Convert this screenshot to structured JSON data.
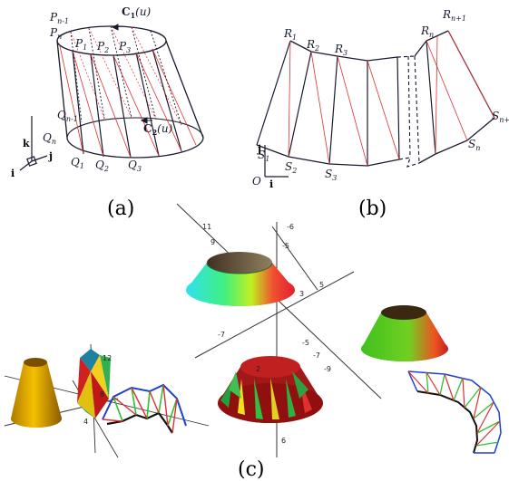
{
  "captions": {
    "a": "(a)",
    "b": "(b)",
    "c": "(c)"
  },
  "panel_a": {
    "curve_top": "C",
    "curve_top_sub": "1",
    "curve_top_arg": "(u)",
    "curve_bottom": "C",
    "curve_bottom_sub": "2",
    "curve_bottom_arg": "(u)",
    "top_points": [
      {
        "name": "P",
        "sub": "n-1"
      },
      {
        "name": "P",
        "sub": "n"
      },
      {
        "name": "P",
        "sub": "1"
      },
      {
        "name": "P",
        "sub": "2"
      },
      {
        "name": "P",
        "sub": "3"
      }
    ],
    "bottom_points": [
      {
        "name": "Q",
        "sub": "n-1"
      },
      {
        "name": "Q",
        "sub": "n"
      },
      {
        "name": "Q",
        "sub": "1"
      },
      {
        "name": "Q",
        "sub": "2"
      },
      {
        "name": "Q",
        "sub": "3"
      }
    ],
    "axes": {
      "k": "k",
      "j": "j",
      "i": "i"
    }
  },
  "panel_b": {
    "top_points": [
      {
        "name": "R",
        "sub": "1"
      },
      {
        "name": "R",
        "sub": "2"
      },
      {
        "name": "R",
        "sub": "3"
      },
      {
        "name": "R",
        "sub": "n"
      },
      {
        "name": "R",
        "sub": "n+1"
      }
    ],
    "bottom_points": [
      {
        "name": "S",
        "sub": "1"
      },
      {
        "name": "S",
        "sub": "2"
      },
      {
        "name": "S",
        "sub": "3"
      },
      {
        "name": "S",
        "sub": "n"
      },
      {
        "name": "S",
        "sub": "n+1"
      }
    ],
    "axes": {
      "j": "j",
      "origin": "O",
      "i": "i"
    }
  },
  "panel_c": {
    "tick_labels_center": [
      "11",
      "9",
      "-5",
      "-6",
      "3",
      "5",
      "-7",
      "-5",
      "-7",
      "-9",
      "6",
      "2"
    ],
    "tick_labels_left": [
      "12",
      "8",
      "4"
    ]
  },
  "colors": {
    "line": "#1a1a2e",
    "red_diag": "#e03030",
    "blue_edge": "#2040d0",
    "green_edge": "#30c030"
  }
}
